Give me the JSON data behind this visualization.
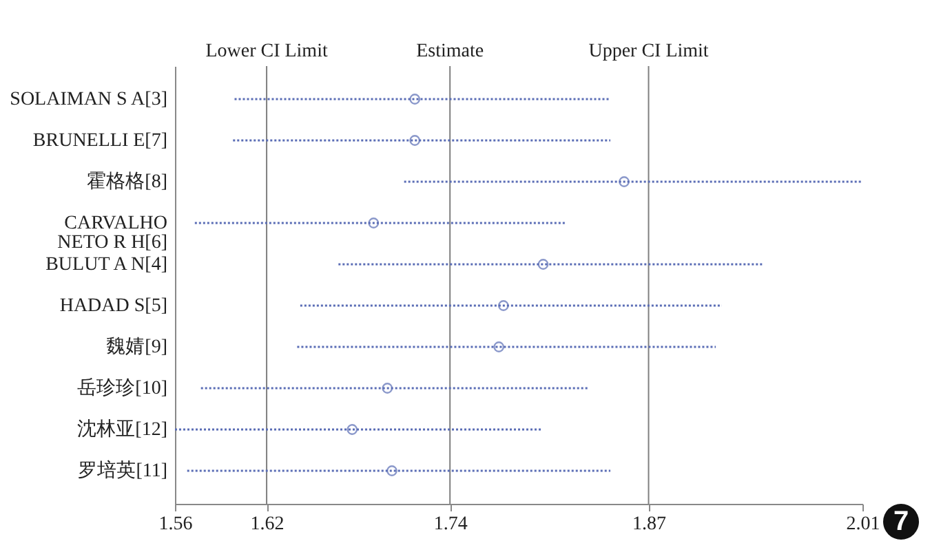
{
  "chart_data": {
    "type": "scatter",
    "orientation": "horizontal",
    "categories": [
      "SOLAIMAN S A[3]",
      "BRUNELLI E[7]",
      "霍格格[8]",
      "CARVALHO\nNETO R H[6]",
      "BULUT A N[4]",
      "HADAD S[5]",
      "魏婧[9]",
      "岳珍珍[10]",
      "沈林亚[12]",
      "罗培英[11]"
    ],
    "series": [
      {
        "color": "#5a6db5",
        "values": [
          1.717,
          1.717,
          1.854,
          1.69,
          1.801,
          1.775,
          1.772,
          1.699,
          1.676,
          1.702
        ],
        "errors": [
          [
            1.599,
            1.845
          ],
          [
            1.598,
            1.845
          ],
          [
            1.71,
            2.01
          ],
          [
            1.573,
            1.816
          ],
          [
            1.667,
            1.945
          ],
          [
            1.642,
            1.918
          ],
          [
            1.64,
            1.914
          ],
          [
            1.577,
            1.831
          ],
          [
            1.56,
            1.8
          ],
          [
            1.568,
            1.845
          ]
        ]
      }
    ],
    "xlim": [
      1.56,
      2.01
    ],
    "xticks": [
      1.56,
      1.62,
      1.74,
      1.87,
      2.01
    ],
    "ref_lines": [
      {
        "axis": "x",
        "value": 1.62,
        "label": "Lower CI Limit",
        "color": "#7f7f7f"
      },
      {
        "axis": "x",
        "value": 1.74,
        "label": "Estimate",
        "color": "#7f7f7f"
      },
      {
        "axis": "x",
        "value": 1.87,
        "label": "Upper CI Limit",
        "color": "#7f7f7f"
      }
    ],
    "marker": "circle",
    "line_style": "dotted",
    "grid": false,
    "annotations": [
      "7"
    ]
  }
}
